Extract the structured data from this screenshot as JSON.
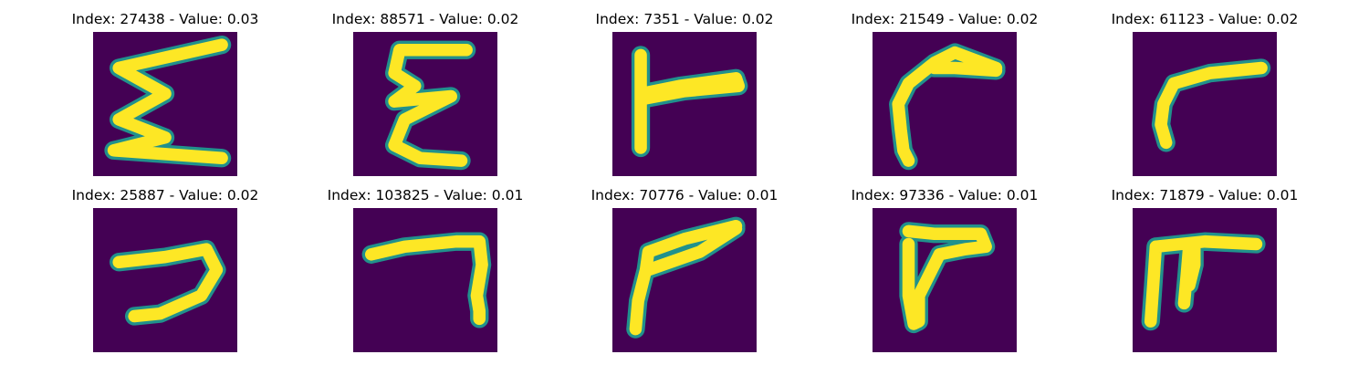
{
  "colors": {
    "background": "#440154",
    "edge": "#21918c",
    "stroke": "#fde725"
  },
  "panels": [
    {
      "index": "27438",
      "value": "0.03",
      "title": "Index: 27438 - Value: 0.03"
    },
    {
      "index": "88571",
      "value": "0.02",
      "title": "Index: 88571 - Value: 0.02"
    },
    {
      "index": "7351",
      "value": "0.02",
      "title": "Index: 7351 - Value: 0.02"
    },
    {
      "index": "21549",
      "value": "0.02",
      "title": "Index: 21549 - Value: 0.02"
    },
    {
      "index": "61123",
      "value": "0.02",
      "title": "Index: 61123 - Value: 0.02"
    },
    {
      "index": "25887",
      "value": "0.02",
      "title": "Index: 25887 - Value: 0.02"
    },
    {
      "index": "103825",
      "value": "0.01",
      "title": "Index: 103825 - Value: 0.01"
    },
    {
      "index": "70776",
      "value": "0.01",
      "title": "Index: 70776 - Value: 0.01"
    },
    {
      "index": "97336",
      "value": "0.01",
      "title": "Index: 97336 - Value: 0.01"
    },
    {
      "index": "71879",
      "value": "0.01",
      "title": "Index: 71879 - Value: 0.01"
    }
  ]
}
